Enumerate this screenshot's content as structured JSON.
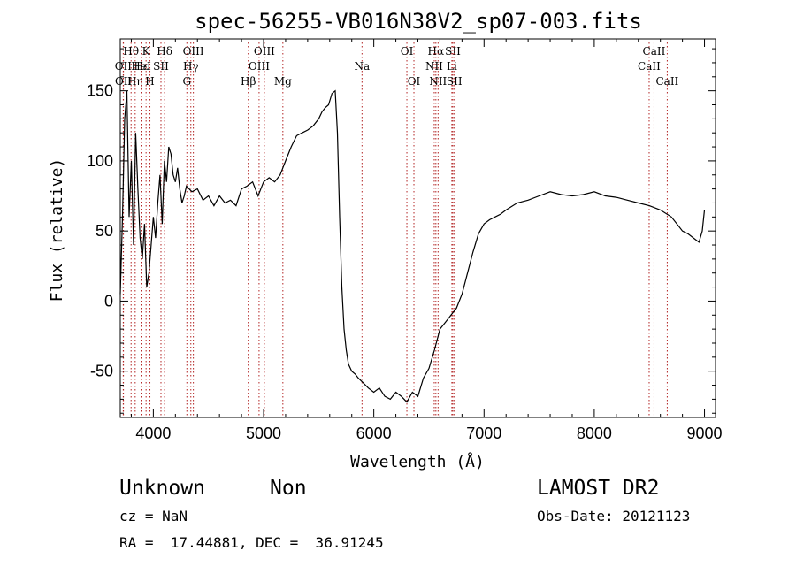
{
  "chart_data": {
    "type": "line",
    "title": "spec-56255-VB016N38V2_sp07-003.fits",
    "xlabel": "Wavelength (Å)",
    "ylabel": "Flux (relative)",
    "xlim": [
      3700,
      9100
    ],
    "ylim": [
      -83,
      187
    ],
    "xticks": [
      4000,
      5000,
      6000,
      7000,
      8000,
      9000
    ],
    "yticks": [
      -50,
      0,
      50,
      100,
      150
    ],
    "grid": false,
    "line_color": "#000000",
    "marker_color": "#b22222",
    "series": [
      {
        "x": [
          3700,
          3720,
          3740,
          3760,
          3780,
          3800,
          3820,
          3840,
          3860,
          3880,
          3900,
          3920,
          3940,
          3960,
          3980,
          4000,
          4020,
          4040,
          4060,
          4080,
          4100,
          4120,
          4140,
          4160,
          4180,
          4200,
          4220,
          4240,
          4260,
          4280,
          4300,
          4350,
          4400,
          4450,
          4500,
          4550,
          4600,
          4650,
          4700,
          4750,
          4800,
          4850,
          4900,
          4950,
          5000,
          5050,
          5100,
          5150,
          5200,
          5250,
          5300,
          5350,
          5400,
          5450,
          5500,
          5530,
          5560,
          5590,
          5620,
          5650,
          5670,
          5690,
          5710,
          5730,
          5750,
          5770,
          5800,
          5830,
          5860,
          5900,
          5950,
          6000,
          6050,
          6100,
          6150,
          6200,
          6250,
          6300,
          6350,
          6400,
          6450,
          6500,
          6550,
          6600,
          6650,
          6700,
          6750,
          6800,
          6850,
          6900,
          6950,
          7000,
          7050,
          7100,
          7150,
          7200,
          7300,
          7400,
          7500,
          7600,
          7700,
          7800,
          7900,
          8000,
          8100,
          8200,
          8300,
          8400,
          8500,
          8600,
          8700,
          8750,
          8800,
          8850,
          8900,
          8950,
          8980,
          9000
        ],
        "y": [
          5,
          60,
          130,
          150,
          60,
          100,
          40,
          120,
          80,
          45,
          30,
          55,
          10,
          20,
          40,
          60,
          45,
          70,
          90,
          55,
          100,
          85,
          110,
          105,
          90,
          85,
          95,
          80,
          70,
          75,
          82,
          78,
          80,
          72,
          75,
          68,
          75,
          70,
          72,
          68,
          80,
          82,
          85,
          75,
          85,
          88,
          85,
          90,
          100,
          110,
          118,
          120,
          122,
          125,
          130,
          135,
          138,
          140,
          148,
          150,
          120,
          60,
          10,
          -20,
          -35,
          -45,
          -50,
          -52,
          -55,
          -58,
          -62,
          -65,
          -62,
          -68,
          -70,
          -65,
          -68,
          -72,
          -65,
          -68,
          -55,
          -48,
          -35,
          -20,
          -15,
          -10,
          -5,
          5,
          20,
          35,
          48,
          55,
          58,
          60,
          62,
          65,
          70,
          72,
          75,
          78,
          76,
          75,
          76,
          78,
          75,
          74,
          72,
          70,
          68,
          65,
          60,
          55,
          50,
          48,
          45,
          42,
          50,
          65
        ]
      }
    ],
    "line_markers": [
      {
        "label": "Hθ",
        "x": 3798,
        "row": 1
      },
      {
        "label": "OII",
        "x": 3727,
        "row": 2
      },
      {
        "label": "OII",
        "x": 3729,
        "row": 3
      },
      {
        "label": "K",
        "x": 3934,
        "row": 1
      },
      {
        "label": "H",
        "x": 3969,
        "row": 3
      },
      {
        "label": "Hε",
        "x": 3890,
        "row": 2
      },
      {
        "label": "Hη",
        "x": 3835,
        "row": 3
      },
      {
        "label": "HeI",
        "x": 3889,
        "row": 2
      },
      {
        "label": "SII",
        "x": 4069,
        "row": 2
      },
      {
        "label": "Hδ",
        "x": 4102,
        "row": 1
      },
      {
        "label": "OIII",
        "x": 4363,
        "row": 1
      },
      {
        "label": "Hγ",
        "x": 4340,
        "row": 2
      },
      {
        "label": "G",
        "x": 4304,
        "row": 3
      },
      {
        "label": "Hβ",
        "x": 4861,
        "row": 3
      },
      {
        "label": "OIII",
        "x": 5007,
        "row": 1
      },
      {
        "label": "OIII",
        "x": 4959,
        "row": 2
      },
      {
        "label": "Mg",
        "x": 5175,
        "row": 3
      },
      {
        "label": "Na",
        "x": 5893,
        "row": 2
      },
      {
        "label": "OI",
        "x": 6300,
        "row": 1
      },
      {
        "label": "OI",
        "x": 6364,
        "row": 3
      },
      {
        "label": "Hα",
        "x": 6563,
        "row": 1
      },
      {
        "label": "NII",
        "x": 6548,
        "row": 2
      },
      {
        "label": "NII",
        "x": 6583,
        "row": 3
      },
      {
        "label": "SII",
        "x": 6717,
        "row": 1
      },
      {
        "label": "Li",
        "x": 6708,
        "row": 2
      },
      {
        "label": "SII",
        "x": 6731,
        "row": 3
      },
      {
        "label": "CaII",
        "x": 8542,
        "row": 1
      },
      {
        "label": "CaII",
        "x": 8498,
        "row": 2
      },
      {
        "label": "CaII",
        "x": 8662,
        "row": 3
      }
    ]
  },
  "info": {
    "class": "Unknown",
    "subclass": "Non",
    "survey": "LAMOST DR2",
    "cz": "cz = NaN",
    "obs_date": "Obs-Date: 20121123",
    "coords": "RA =  17.44881, DEC =  36.91245"
  }
}
